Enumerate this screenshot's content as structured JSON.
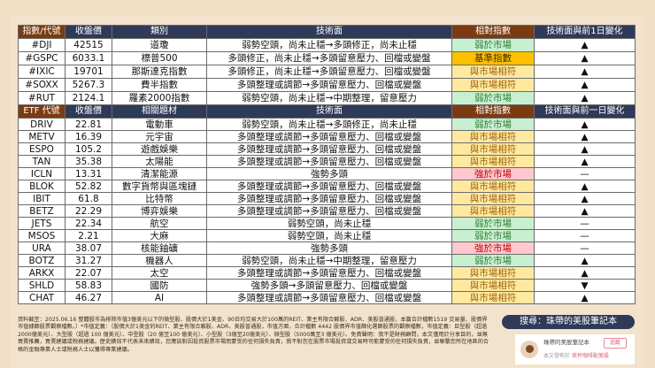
{
  "index_table": {
    "headers": [
      "指數/代號",
      "收盤價",
      "類別",
      "技術面",
      "相對指數",
      "技術面與前1日變化"
    ],
    "rows": [
      {
        "code": "#DJI",
        "close": "42515",
        "category": "道瓊",
        "tech": "弱勢空頭，尚未止穩→多頭修正，尚未止穩",
        "relative": "弱於市場",
        "rel_type": "weak",
        "change": "up"
      },
      {
        "code": "#GSPC",
        "close": "6033.1",
        "category": "標普500",
        "tech": "多頭修正，尚未止穩→多頭留意壓力、回檔或變盤",
        "relative": "基準指數",
        "rel_type": "bench",
        "change": "up"
      },
      {
        "code": "#IXIC",
        "close": "19701",
        "category": "那斯達克指數",
        "tech": "多頭修正，尚未止穩→多頭留意壓力、回檔或變盤",
        "relative": "與市場相符",
        "rel_type": "match",
        "change": "up"
      },
      {
        "code": "#SOXX",
        "close": "5267.3",
        "category": "費半指數",
        "tech": "多頭整理或調節→多頭留意壓力、回檔或變盤",
        "relative": "與市場相符",
        "rel_type": "match",
        "change": "up"
      },
      {
        "code": "#RUT",
        "close": "2124.1",
        "category": "羅素2000指數",
        "tech": "弱勢空頭，尚未止穩→中期整理，留意壓力",
        "relative": "弱於市場",
        "rel_type": "weak",
        "change": "up"
      }
    ]
  },
  "etf_table": {
    "headers": [
      "ETF 代號",
      "收盤價",
      "相關題材",
      "技術面",
      "相對指數",
      "技術面與前一日變化"
    ],
    "rows": [
      {
        "code": "DRIV",
        "close": "22.81",
        "category": "電動車",
        "tech": "弱勢空頭，尚未止穩→多頭修正，尚未止穩",
        "relative": "弱於市場",
        "rel_type": "weak",
        "change": "up"
      },
      {
        "code": "METV",
        "close": "16.39",
        "category": "元宇宙",
        "tech": "多頭整理或調節→多頭留意壓力、回檔或變盤",
        "relative": "與市場相符",
        "rel_type": "match",
        "change": "up"
      },
      {
        "code": "ESPO",
        "close": "105.2",
        "category": "遊戲娛樂",
        "tech": "多頭整理或調節→多頭留意壓力、回檔或變盤",
        "relative": "與市場相符",
        "rel_type": "match",
        "change": "up"
      },
      {
        "code": "TAN",
        "close": "35.38",
        "category": "太陽能",
        "tech": "多頭整理或調節→多頭留意壓力、回檔或變盤",
        "relative": "與市場相符",
        "rel_type": "match",
        "change": "up"
      },
      {
        "code": "ICLN",
        "close": "13.31",
        "category": "清潔能源",
        "tech": "強勢多頭",
        "relative": "強於市場",
        "rel_type": "strong",
        "change": "flat"
      },
      {
        "code": "BLOK",
        "close": "52.82",
        "category": "數字貨幣與區塊鏈",
        "tech": "多頭整理或調節→多頭留意壓力、回檔或變盤",
        "relative": "與市場相符",
        "rel_type": "match",
        "change": "up"
      },
      {
        "code": "IBIT",
        "close": "61.8",
        "category": "比特幣",
        "tech": "多頭整理或調節→多頭留意壓力、回檔或變盤",
        "relative": "與市場相符",
        "rel_type": "match",
        "change": "up"
      },
      {
        "code": "BETZ",
        "close": "22.29",
        "category": "博弈娛樂",
        "tech": "多頭整理或調節→多頭留意壓力、回檔或變盤",
        "relative": "與市場相符",
        "rel_type": "match",
        "change": "up"
      },
      {
        "code": "JETS",
        "close": "22.34",
        "category": "航空",
        "tech": "弱勢空頭，尚未止穩",
        "relative": "弱於市場",
        "rel_type": "weak",
        "change": "flat"
      },
      {
        "code": "MSOS",
        "close": "2.21",
        "category": "大麻",
        "tech": "弱勢空頭，尚未止穩",
        "relative": "弱於市場",
        "rel_type": "weak",
        "change": "flat"
      },
      {
        "code": "URA",
        "close": "38.07",
        "category": "核能鈾礦",
        "tech": "強勢多頭",
        "relative": "強於市場",
        "rel_type": "strong",
        "change": "flat"
      },
      {
        "code": "BOTZ",
        "close": "31.27",
        "category": "機器人",
        "tech": "弱勢空頭，尚未止穩→中期整理，留意壓力",
        "relative": "弱於市場",
        "rel_type": "weak",
        "change": "up"
      },
      {
        "code": "ARKX",
        "close": "22.07",
        "category": "太空",
        "tech": "多頭整理或調節→多頭留意壓力、回檔或變盤",
        "relative": "與市場相符",
        "rel_type": "match",
        "change": "up"
      },
      {
        "code": "SHLD",
        "close": "58.83",
        "category": "國防",
        "tech": "強勢多頭→多頭留意壓力、回檔或變盤",
        "relative": "與市場相符",
        "rel_type": "match",
        "change": "down"
      },
      {
        "code": "CHAT",
        "close": "46.27",
        "category": "AI",
        "tech": "多頭整理或調節→多頭留意壓力、回檔或變盤",
        "relative": "與市場相符",
        "rel_type": "match",
        "change": "up"
      }
    ]
  },
  "change_glyphs": {
    "up": "▲",
    "down": "▼",
    "flat": "—"
  },
  "colors": {
    "header_navy": "#2f3a58",
    "header_brown": "#7a3b12",
    "up": "#c00000",
    "down": "#548235"
  },
  "footer": {
    "note": "資料截至：2025.06.16 整體股市為排除市值3億美元以下的微型股、股價大於1美金、90日均交易大於100萬的REIT、業主有限合夥股、ADR、美股普通股，本篇合計檔數1519 交易量、股價界市值據篩股票觀察檔數。）*市值定義：（股價大於1美金的REIT、業主有限合夥股、ADR、美股普通股，市值方面，合計檔數 4442 股價界市值篩化選篩股票的觀察檔數，市值定義：巨型股（超過2000億美元）、大型股（超過 100 億美元）、中型股（20 億至100 億美元）、小型股（3億至20億美元）、微型股（5000萬至3 億美元）。免責聲明：我不是財務顧問，本文僅用於分享目的，並無買賣推薦，買賣建議或稅務建議。歷史績效不代表未來績效，您應該對因投資股票市場而蒙受的任何損失負責，我不對您在股票市場投資或交易時可能蒙受的任何損失負責，並聯繫您所在地區的合格的金融專業人士或稅務人士以獲得專業建議。"
  },
  "search_banner": "搜尋：珠帶的美股筆記本",
  "author_card": {
    "name": "珠帶的美股筆記本",
    "follow_label": "追蹤",
    "published_prefix": "本文發佈於",
    "published_in": "來杯咖啡配美股"
  }
}
